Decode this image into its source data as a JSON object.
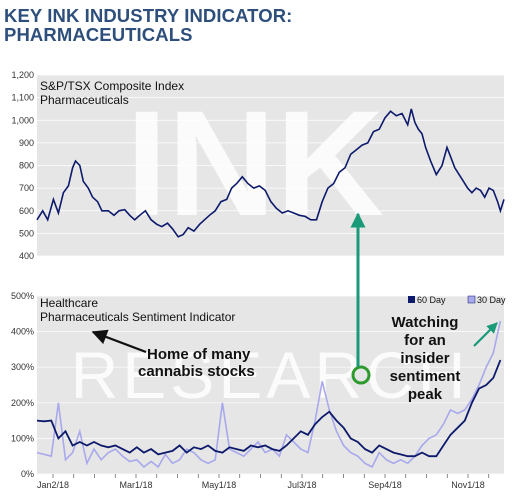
{
  "title_line1": "KEY INK INDUSTRY INDICATOR:",
  "title_line2": "PHARMACEUTICALS",
  "colors": {
    "title": "#2e4f7c",
    "series_60day": "#0d1a6b",
    "series_30day": "#a8a8ec",
    "index_line": "#0d1a6b",
    "arrow": "#1a9a78",
    "circle": "#2e9a2e",
    "plot_background": "#e6e6e6",
    "watermark": "#ffffff"
  },
  "watermark_top": "INK",
  "watermark_bottom": "RESEARCH",
  "chart_data": [
    {
      "type": "line",
      "title": "S&P/TSX Composite Index",
      "subtitle": "Pharmaceuticals",
      "ylim": [
        400,
        1200
      ],
      "y_ticks": [
        "400",
        "500",
        "600",
        "700",
        "800",
        "900",
        "1,000",
        "1,100",
        "1,200"
      ],
      "grid": true,
      "series": [
        {
          "points": [
            [
              0.0,
              560
            ],
            [
              0.8,
              600
            ],
            [
              1.5,
              560
            ],
            [
              2.3,
              650
            ],
            [
              3.0,
              590
            ],
            [
              3.7,
              680
            ],
            [
              4.4,
              710
            ],
            [
              5.0,
              790
            ],
            [
              5.4,
              820
            ],
            [
              6.0,
              800
            ],
            [
              6.5,
              730
            ],
            [
              7.2,
              700
            ],
            [
              7.8,
              660
            ],
            [
              8.5,
              640
            ],
            [
              9.1,
              600
            ],
            [
              10.0,
              600
            ],
            [
              10.8,
              580
            ],
            [
              11.5,
              600
            ],
            [
              12.3,
              605
            ],
            [
              13.0,
              580
            ],
            [
              13.7,
              560
            ],
            [
              14.4,
              580
            ],
            [
              15.2,
              600
            ],
            [
              16.0,
              560
            ],
            [
              16.8,
              540
            ],
            [
              17.5,
              530
            ],
            [
              18.3,
              545
            ],
            [
              19.0,
              520
            ],
            [
              19.8,
              485
            ],
            [
              20.5,
              495
            ],
            [
              21.2,
              525
            ],
            [
              22.0,
              510
            ],
            [
              22.8,
              540
            ],
            [
              23.5,
              560
            ],
            [
              24.2,
              580
            ],
            [
              25.0,
              600
            ],
            [
              25.8,
              640
            ],
            [
              26.6,
              650
            ],
            [
              27.3,
              700
            ],
            [
              28.0,
              720
            ],
            [
              28.8,
              750
            ],
            [
              29.6,
              720
            ],
            [
              30.4,
              700
            ],
            [
              31.2,
              710
            ],
            [
              32.0,
              690
            ],
            [
              32.8,
              640
            ],
            [
              33.6,
              610
            ],
            [
              34.4,
              590
            ],
            [
              35.2,
              600
            ],
            [
              36.0,
              590
            ],
            [
              36.8,
              580
            ],
            [
              37.6,
              575
            ],
            [
              38.4,
              560
            ],
            [
              39.2,
              560
            ],
            [
              40.0,
              640
            ],
            [
              40.8,
              700
            ],
            [
              41.6,
              720
            ],
            [
              42.4,
              770
            ],
            [
              43.2,
              790
            ],
            [
              44.0,
              850
            ],
            [
              44.8,
              870
            ],
            [
              45.6,
              890
            ],
            [
              46.4,
              900
            ],
            [
              47.2,
              950
            ],
            [
              48.0,
              960
            ],
            [
              48.8,
              1010
            ],
            [
              49.6,
              1040
            ],
            [
              50.4,
              1020
            ],
            [
              51.2,
              1030
            ],
            [
              52.0,
              980
            ],
            [
              52.5,
              1050
            ],
            [
              53.0,
              990
            ],
            [
              53.5,
              960
            ],
            [
              54.0,
              940
            ],
            [
              54.5,
              880
            ],
            [
              55.2,
              820
            ],
            [
              56.0,
              760
            ],
            [
              56.8,
              800
            ],
            [
              57.5,
              880
            ],
            [
              58.0,
              840
            ],
            [
              58.6,
              790
            ],
            [
              59.2,
              760
            ],
            [
              59.8,
              730
            ],
            [
              60.4,
              700
            ],
            [
              61.0,
              680
            ],
            [
              61.6,
              700
            ],
            [
              62.2,
              690
            ],
            [
              62.8,
              660
            ],
            [
              63.4,
              700
            ],
            [
              64.0,
              690
            ],
            [
              64.6,
              640
            ],
            [
              65.0,
              600
            ],
            [
              65.5,
              650
            ]
          ]
        }
      ]
    },
    {
      "type": "line",
      "title": "Healthcare",
      "subtitle": "Pharmaceuticals Sentiment Indicator",
      "ylim": [
        0,
        500
      ],
      "y_ticks": [
        "0%",
        "100%",
        "200%",
        "300%",
        "400%",
        "500%"
      ],
      "x_tick_labels": [
        "Jan2/18",
        "Mar1/18",
        "May1/18",
        "Jul3/18",
        "Sep4/18",
        "Nov1/18"
      ],
      "grid": true,
      "legend_position": "top-right",
      "series": [
        {
          "name": "60 Day",
          "points": [
            [
              0,
              150
            ],
            [
              1,
              148
            ],
            [
              2,
              150
            ],
            [
              3,
              100
            ],
            [
              4,
              120
            ],
            [
              5,
              80
            ],
            [
              6,
              90
            ],
            [
              7,
              80
            ],
            [
              8,
              90
            ],
            [
              9,
              80
            ],
            [
              10,
              75
            ],
            [
              11,
              80
            ],
            [
              12,
              70
            ],
            [
              13,
              60
            ],
            [
              14,
              75
            ],
            [
              15,
              60
            ],
            [
              16,
              70
            ],
            [
              17,
              55
            ],
            [
              18,
              60
            ],
            [
              19,
              65
            ],
            [
              20,
              80
            ],
            [
              21,
              60
            ],
            [
              22,
              75
            ],
            [
              23,
              70
            ],
            [
              24,
              80
            ],
            [
              25,
              65
            ],
            [
              26,
              60
            ],
            [
              27,
              75
            ],
            [
              28,
              70
            ],
            [
              29,
              65
            ],
            [
              30,
              80
            ],
            [
              31,
              75
            ],
            [
              32,
              80
            ],
            [
              33,
              70
            ],
            [
              34,
              65
            ],
            [
              35,
              80
            ],
            [
              36,
              100
            ],
            [
              37,
              120
            ],
            [
              38,
              110
            ],
            [
              39,
              140
            ],
            [
              40,
              160
            ],
            [
              41,
              175
            ],
            [
              42,
              150
            ],
            [
              43,
              130
            ],
            [
              44,
              100
            ],
            [
              45,
              90
            ],
            [
              46,
              70
            ],
            [
              47,
              60
            ],
            [
              48,
              80
            ],
            [
              49,
              70
            ],
            [
              50,
              60
            ],
            [
              51,
              55
            ],
            [
              52,
              50
            ],
            [
              53,
              50
            ],
            [
              54,
              60
            ],
            [
              55,
              50
            ],
            [
              56,
              50
            ],
            [
              57,
              80
            ],
            [
              58,
              110
            ],
            [
              59,
              130
            ],
            [
              60,
              150
            ],
            [
              61,
              200
            ],
            [
              62,
              240
            ],
            [
              63,
              250
            ],
            [
              64,
              270
            ],
            [
              65,
              320
            ]
          ]
        },
        {
          "name": "30 Day",
          "points": [
            [
              0,
              60
            ],
            [
              1,
              55
            ],
            [
              2,
              50
            ],
            [
              3,
              200
            ],
            [
              4,
              40
            ],
            [
              5,
              60
            ],
            [
              6,
              120
            ],
            [
              7,
              30
            ],
            [
              8,
              70
            ],
            [
              9,
              40
            ],
            [
              10,
              60
            ],
            [
              11,
              70
            ],
            [
              12,
              50
            ],
            [
              13,
              35
            ],
            [
              14,
              40
            ],
            [
              15,
              20
            ],
            [
              16,
              35
            ],
            [
              17,
              20
            ],
            [
              18,
              55
            ],
            [
              19,
              30
            ],
            [
              20,
              40
            ],
            [
              21,
              70
            ],
            [
              22,
              60
            ],
            [
              23,
              40
            ],
            [
              24,
              30
            ],
            [
              25,
              40
            ],
            [
              26,
              200
            ],
            [
              27,
              70
            ],
            [
              28,
              60
            ],
            [
              29,
              50
            ],
            [
              30,
              70
            ],
            [
              31,
              90
            ],
            [
              32,
              60
            ],
            [
              33,
              70
            ],
            [
              34,
              50
            ],
            [
              35,
              110
            ],
            [
              36,
              90
            ],
            [
              37,
              70
            ],
            [
              38,
              60
            ],
            [
              39,
              150
            ],
            [
              40,
              260
            ],
            [
              41,
              180
            ],
            [
              42,
              120
            ],
            [
              43,
              80
            ],
            [
              44,
              60
            ],
            [
              45,
              50
            ],
            [
              46,
              30
            ],
            [
              47,
              20
            ],
            [
              48,
              60
            ],
            [
              49,
              40
            ],
            [
              50,
              30
            ],
            [
              51,
              40
            ],
            [
              52,
              30
            ],
            [
              53,
              50
            ],
            [
              54,
              80
            ],
            [
              55,
              100
            ],
            [
              56,
              110
            ],
            [
              57,
              140
            ],
            [
              58,
              180
            ],
            [
              59,
              170
            ],
            [
              60,
              180
            ],
            [
              61,
              210
            ],
            [
              62,
              250
            ],
            [
              63,
              300
            ],
            [
              64,
              340
            ],
            [
              65,
              430
            ]
          ]
        }
      ],
      "annotations": {
        "home": [
          "Home of many",
          "cannabis stocks"
        ],
        "watching": [
          "Watching",
          "for an",
          "insider",
          "sentiment",
          "peak"
        ]
      }
    }
  ]
}
